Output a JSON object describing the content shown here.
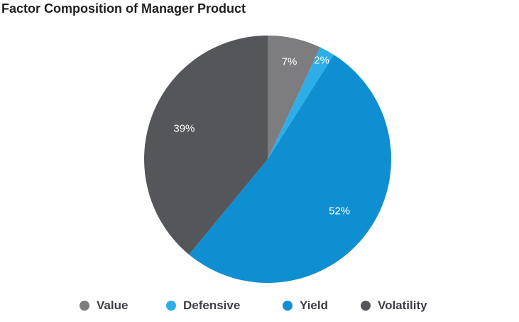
{
  "chart_data": {
    "type": "pie",
    "title": "Factor Composition of Manager Product",
    "categories": [
      "Value",
      "Defensive",
      "Yield",
      "Volatility"
    ],
    "values": [
      7,
      2,
      52,
      39
    ],
    "labels": [
      "7%",
      "2%",
      "52%",
      "39%"
    ],
    "colors": [
      "#7d7d7f",
      "#2eaee8",
      "#0f8fd1",
      "#55565a"
    ],
    "legend_position": "bottom"
  }
}
